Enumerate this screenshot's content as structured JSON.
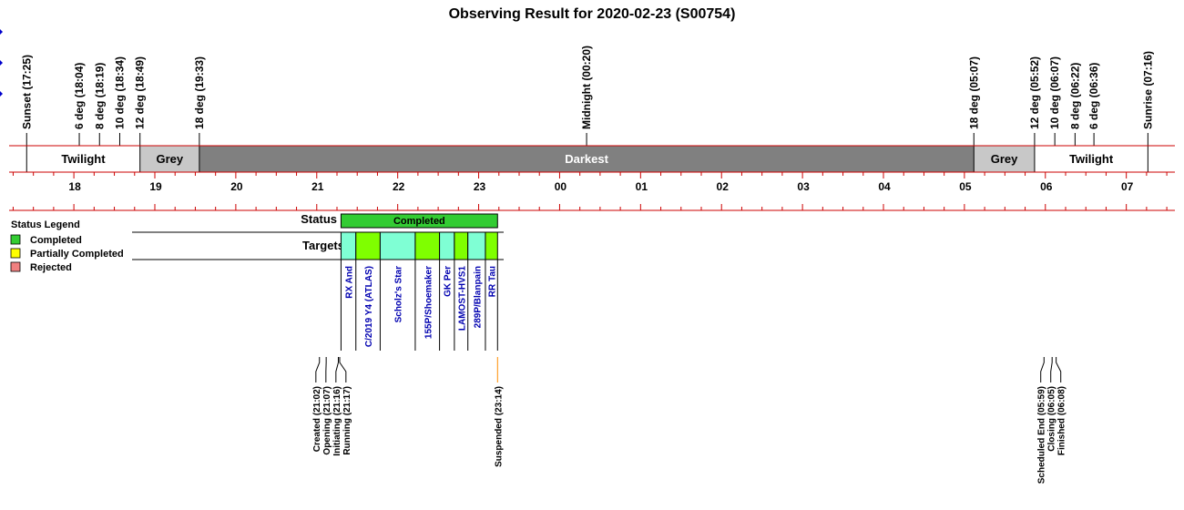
{
  "title": "Observing Result for 2020-02-23 (S00754)",
  "timeline": {
    "start_hour": 17.2,
    "end_hour": 31.6,
    "hour_labels": [
      "18",
      "19",
      "20",
      "21",
      "22",
      "23",
      "00",
      "01",
      "02",
      "03",
      "04",
      "05",
      "06",
      "07"
    ],
    "events": [
      {
        "label": "Sunset (17:25)",
        "time": "17:25"
      },
      {
        "label": "6 deg (18:04)",
        "time": "18:04"
      },
      {
        "label": "8 deg (18:19)",
        "time": "18:19"
      },
      {
        "label": "10 deg (18:34)",
        "time": "18:34"
      },
      {
        "label": "12 deg (18:49)",
        "time": "18:49"
      },
      {
        "label": "18 deg (19:33)",
        "time": "19:33"
      },
      {
        "label": "Midnight (00:20)",
        "time": "00:20"
      },
      {
        "label": "18 deg (05:07)",
        "time": "05:07"
      },
      {
        "label": "12 deg (05:52)",
        "time": "05:52"
      },
      {
        "label": "10 deg (06:07)",
        "time": "06:07"
      },
      {
        "label": "8 deg (06:22)",
        "time": "06:22"
      },
      {
        "label": "6 deg (06:36)",
        "time": "06:36"
      },
      {
        "label": "Sunrise (07:16)",
        "time": "07:16"
      }
    ],
    "bands": [
      {
        "label": "Twilight",
        "start": "17:25",
        "end": "18:49",
        "color": "#ffffff",
        "text_color": "#000000"
      },
      {
        "label": "Grey",
        "start": "18:49",
        "end": "19:33",
        "color": "#c8c8c8",
        "text_color": "#000000"
      },
      {
        "label": "Darkest",
        "start": "19:33",
        "end": "05:07",
        "color": "#808080",
        "text_color": "#ffffff"
      },
      {
        "label": "Grey",
        "start": "05:07",
        "end": "05:52",
        "color": "#c8c8c8",
        "text_color": "#000000"
      },
      {
        "label": "Twilight",
        "start": "05:52",
        "end": "07:16",
        "color": "#ffffff",
        "text_color": "#000000"
      }
    ]
  },
  "legend": {
    "title": "Status Legend",
    "items": [
      {
        "label": "Completed",
        "color": "#33cc33"
      },
      {
        "label": "Partially Completed",
        "color": "#ffff00"
      },
      {
        "label": "Rejected",
        "color": "#f08080"
      }
    ]
  },
  "rows": {
    "status_label": "Status",
    "targets_label": "Targets"
  },
  "status_bar": {
    "label": "Completed",
    "start": "21:18",
    "end": "23:14",
    "color": "#33cc33"
  },
  "targets": [
    {
      "name": "RX And",
      "start": "21:18",
      "end": "21:29",
      "color": "#7fffd4"
    },
    {
      "name": "C/2019 Y4 (ATLAS)",
      "start": "21:29",
      "end": "21:47",
      "color": "#7fff00"
    },
    {
      "name": "Scholz's Star",
      "start": "21:47",
      "end": "22:13",
      "color": "#7fffd4"
    },
    {
      "name": "155P/Shoemaker",
      "start": "22:13",
      "end": "22:31",
      "color": "#7fff00"
    },
    {
      "name": "GK Per",
      "start": "22:31",
      "end": "22:42",
      "color": "#7fffd4"
    },
    {
      "name": "LAMOST-HVS1",
      "start": "22:42",
      "end": "22:52",
      "color": "#7fff00"
    },
    {
      "name": "289P/Blanpain",
      "start": "22:52",
      "end": "23:05",
      "color": "#7fffd4"
    },
    {
      "name": "RR Tau",
      "start": "23:05",
      "end": "23:14",
      "color": "#7fff00"
    }
  ],
  "run_events": [
    {
      "label": "Created (21:02)",
      "time": "21:02",
      "color": "#000000"
    },
    {
      "label": "Opening (21:07)",
      "time": "21:07",
      "color": "#000000"
    },
    {
      "label": "Initiating (21:16)",
      "time": "21:16",
      "color": "#000000"
    },
    {
      "label": "Running (21:17)",
      "time": "21:17",
      "color": "#000000"
    },
    {
      "label": "Suspended (23:14)",
      "time": "23:14",
      "color": "#ff8c00"
    },
    {
      "label": "Scheduled End (05:59)",
      "time": "05:59",
      "color": "#000000"
    },
    {
      "label": "Closing (06:05)",
      "time": "06:05",
      "color": "#000000"
    },
    {
      "label": "Finished (06:08)",
      "time": "06:08",
      "color": "#000000"
    }
  ],
  "colors": {
    "axis_red": "#cc0000",
    "marker_blue": "#0000cc"
  }
}
